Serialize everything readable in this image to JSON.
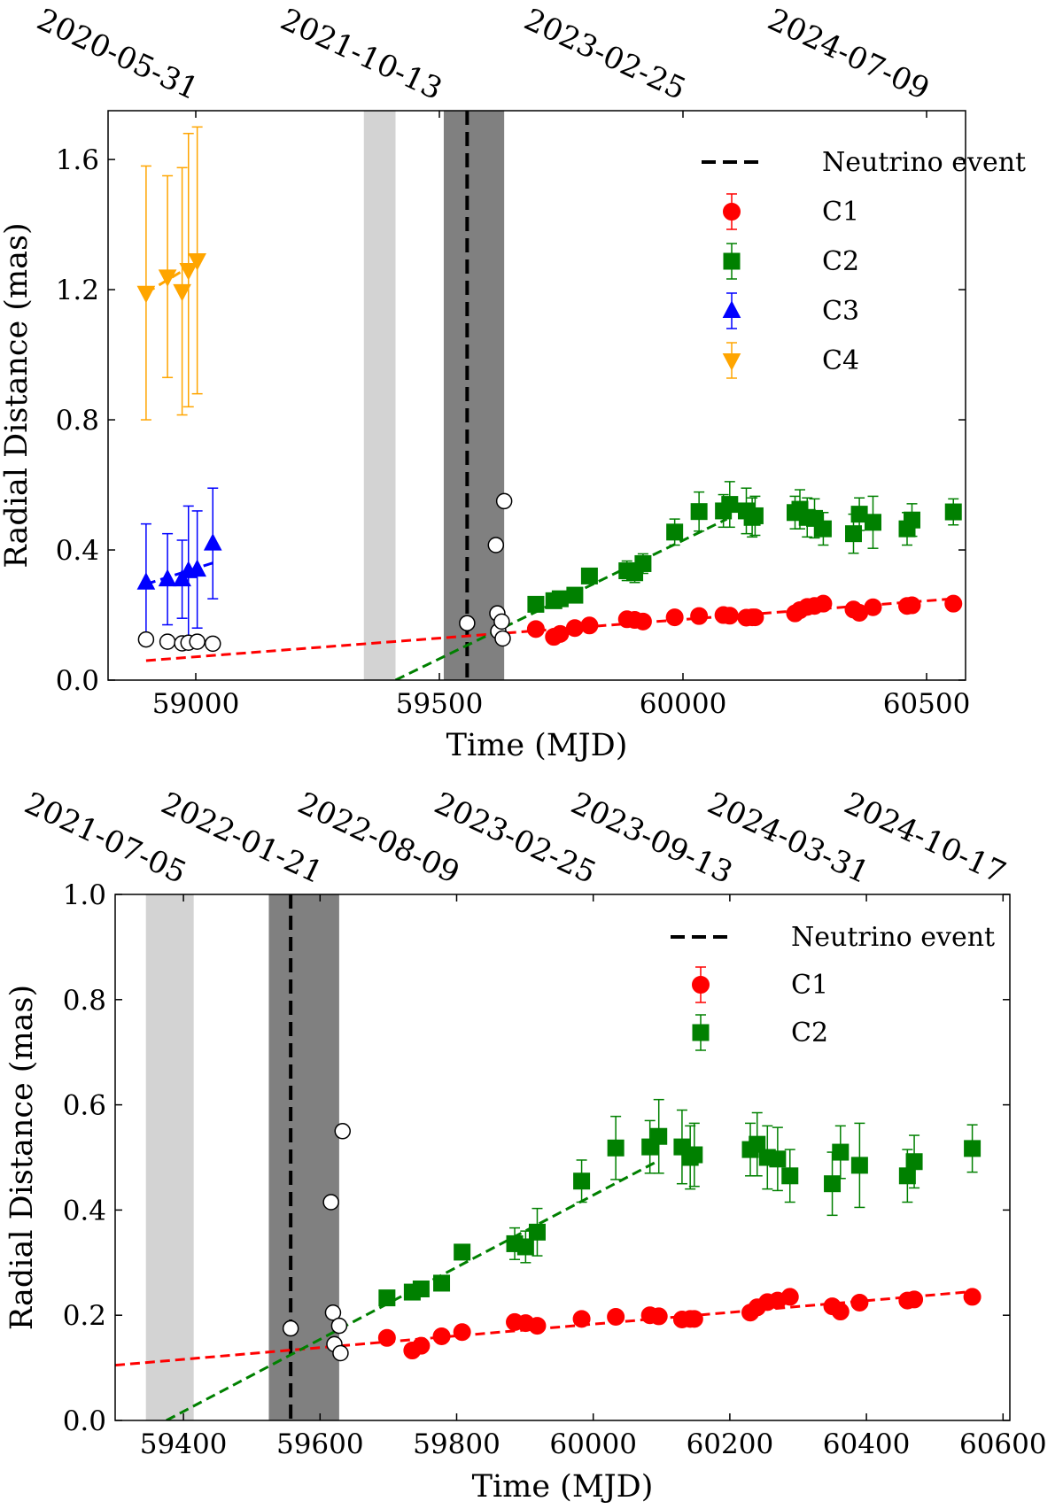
{
  "chart_data": [
    {
      "type": "scatter",
      "xlabel": "Time (MJD)",
      "ylabel": "Radial Distance (mas)",
      "xlim": [
        58820,
        60580
      ],
      "ylim": [
        0.0,
        1.75
      ],
      "xticks": [
        59000,
        59500,
        60000,
        60500
      ],
      "yticks": [
        0.0,
        0.4,
        0.8,
        1.2,
        1.6
      ],
      "xtick_labels": [
        "59000",
        "59500",
        "60000",
        "60500"
      ],
      "ytick_labels": [
        "0.0",
        "0.4",
        "0.8",
        "1.2",
        "1.6"
      ],
      "top_axis_dates": [
        {
          "mjd": 59000,
          "label": "2020-05-31"
        },
        {
          "mjd": 59500,
          "label": "2021-10-13"
        },
        {
          "mjd": 60000,
          "label": "2023-02-25"
        },
        {
          "mjd": 60500,
          "label": "2024-07-09"
        }
      ],
      "legend_position": "top-right",
      "shaded_regions": [
        {
          "x0": 59345,
          "x1": 59410,
          "color": "#d3d3d3"
        },
        {
          "x0": 59509,
          "x1": 59633,
          "color": "#808080"
        }
      ],
      "vlines": [
        {
          "x": 59557,
          "name": "Neutrino event",
          "color": "#000000",
          "style": "dashed"
        }
      ],
      "series": [
        {
          "name": "C1",
          "color": "#ff0000",
          "marker": "circle",
          "points": [
            [
              59698,
              0.157
            ],
            [
              59735,
              0.133
            ],
            [
              59748,
              0.142
            ],
            [
              59778,
              0.16
            ],
            [
              59808,
              0.168
            ],
            [
              59885,
              0.187
            ],
            [
              59901,
              0.185
            ],
            [
              59918,
              0.18
            ],
            [
              59983,
              0.193
            ],
            [
              60033,
              0.197
            ],
            [
              60083,
              0.2
            ],
            [
              60096,
              0.198
            ],
            [
              60130,
              0.192
            ],
            [
              60142,
              0.193
            ],
            [
              60148,
              0.193
            ],
            [
              60230,
              0.205
            ],
            [
              60240,
              0.215
            ],
            [
              60255,
              0.225
            ],
            [
              60270,
              0.228
            ],
            [
              60288,
              0.235
            ],
            [
              60350,
              0.217
            ],
            [
              60362,
              0.207
            ],
            [
              60390,
              0.224
            ],
            [
              60460,
              0.228
            ],
            [
              60470,
              0.23
            ],
            [
              60555,
              0.235
            ]
          ],
          "err": []
        },
        {
          "name": "C2",
          "color": "#008000",
          "marker": "square",
          "points": [
            [
              59698,
              0.233
            ],
            [
              59735,
              0.244
            ],
            [
              59748,
              0.25
            ],
            [
              59778,
              0.261
            ],
            [
              59808,
              0.32
            ],
            [
              59885,
              0.336
            ],
            [
              59901,
              0.33
            ],
            [
              59918,
              0.358
            ],
            [
              59983,
              0.455
            ],
            [
              60033,
              0.518
            ],
            [
              60083,
              0.52
            ],
            [
              60096,
              0.54
            ],
            [
              60130,
              0.52
            ],
            [
              60142,
              0.5
            ],
            [
              60148,
              0.505
            ],
            [
              60230,
              0.515
            ],
            [
              60240,
              0.525
            ],
            [
              60255,
              0.5
            ],
            [
              60270,
              0.497
            ],
            [
              60288,
              0.465
            ],
            [
              60350,
              0.45
            ],
            [
              60362,
              0.51
            ],
            [
              60390,
              0.485
            ],
            [
              60460,
              0.465
            ],
            [
              60470,
              0.492
            ],
            [
              60555,
              0.517
            ]
          ],
          "err": [
            0,
            0,
            0,
            0,
            0,
            0.03,
            0.03,
            0.03,
            0.04,
            0.06,
            0.05,
            0.07,
            0.07,
            0.06,
            0.06,
            0.05,
            0.06,
            0.06,
            0.06,
            0.05,
            0.06,
            0.05,
            0.08,
            0.05,
            0.05,
            0.04
          ]
        },
        {
          "name": "C3",
          "color": "#0000ff",
          "marker": "triangle-up",
          "points": [
            [
              58898,
              0.3
            ],
            [
              58942,
              0.31
            ],
            [
              58972,
              0.31
            ],
            [
              58985,
              0.335
            ],
            [
              59003,
              0.34
            ],
            [
              59035,
              0.42
            ]
          ],
          "err": [
            0.18,
            0.14,
            0.12,
            0.2,
            0.18,
            0.17
          ]
        },
        {
          "name": "C4",
          "color": "#ffa500",
          "marker": "triangle-down",
          "points": [
            [
              58898,
              1.19
            ],
            [
              58942,
              1.24
            ],
            [
              58972,
              1.195
            ],
            [
              58985,
              1.26
            ],
            [
              59003,
              1.29
            ]
          ],
          "err": [
            0.39,
            0.31,
            0.38,
            0.42,
            0.41
          ]
        }
      ],
      "unassociated_points": [
        [
          58898,
          0.125
        ],
        [
          58942,
          0.118
        ],
        [
          58972,
          0.113
        ],
        [
          58985,
          0.115
        ],
        [
          59003,
          0.118
        ],
        [
          59035,
          0.112
        ],
        [
          59557,
          0.175
        ],
        [
          59616,
          0.415
        ],
        [
          59619,
          0.205
        ],
        [
          59621,
          0.15
        ],
        [
          59628,
          0.18
        ],
        [
          59630,
          0.128
        ],
        [
          59633,
          0.55
        ]
      ],
      "fit_lines": [
        {
          "color": "#ff0000",
          "x0": 58898,
          "y0": 0.06,
          "x1": 60555,
          "y1": 0.25
        },
        {
          "color": "#008000",
          "x0": 59410,
          "y0": 0.0,
          "x1": 60090,
          "y1": 0.495
        },
        {
          "color": "#0000ff",
          "x0": 58898,
          "y0": 0.295,
          "x1": 59035,
          "y1": 0.36
        },
        {
          "color": "#ffa500",
          "x0": 58898,
          "y0": 1.19,
          "x1": 59003,
          "y1": 1.285
        }
      ],
      "legend": [
        "Neutrino event",
        "C1",
        "C2",
        "C3",
        "C4"
      ]
    },
    {
      "type": "scatter",
      "xlabel": "Time (MJD)",
      "ylabel": "Radial Distance (mas)",
      "xlim": [
        59300,
        60610
      ],
      "ylim": [
        0.0,
        1.0
      ],
      "xticks": [
        59400,
        59600,
        59800,
        60000,
        60200,
        60400,
        60600
      ],
      "yticks": [
        0.0,
        0.2,
        0.4,
        0.6,
        0.8,
        1.0
      ],
      "xtick_labels": [
        "59400",
        "59600",
        "59800",
        "60000",
        "60200",
        "60400",
        "60600"
      ],
      "ytick_labels": [
        "0.0",
        "0.2",
        "0.4",
        "0.6",
        "0.8",
        "1.0"
      ],
      "top_axis_dates": [
        {
          "mjd": 59400,
          "label": "2021-07-05"
        },
        {
          "mjd": 59600,
          "label": "2022-01-21"
        },
        {
          "mjd": 59800,
          "label": "2022-08-09"
        },
        {
          "mjd": 60000,
          "label": "2023-02-25"
        },
        {
          "mjd": 60200,
          "label": "2023-09-13"
        },
        {
          "mjd": 60400,
          "label": "2024-03-31"
        },
        {
          "mjd": 60600,
          "label": "2024-10-17"
        }
      ],
      "legend_position": "top-right",
      "shaded_regions": [
        {
          "x0": 59345,
          "x1": 59415,
          "color": "#d3d3d3"
        },
        {
          "x0": 59525,
          "x1": 59628,
          "color": "#808080"
        }
      ],
      "vlines": [
        {
          "x": 59557,
          "name": "Neutrino event",
          "color": "#000000",
          "style": "dashed"
        }
      ],
      "series": [
        {
          "name": "C1",
          "color": "#ff0000",
          "marker": "circle",
          "points": [
            [
              59698,
              0.157
            ],
            [
              59735,
              0.133
            ],
            [
              59748,
              0.142
            ],
            [
              59778,
              0.16
            ],
            [
              59808,
              0.168
            ],
            [
              59885,
              0.187
            ],
            [
              59901,
              0.185
            ],
            [
              59918,
              0.18
            ],
            [
              59983,
              0.193
            ],
            [
              60033,
              0.197
            ],
            [
              60083,
              0.2
            ],
            [
              60096,
              0.198
            ],
            [
              60130,
              0.192
            ],
            [
              60142,
              0.193
            ],
            [
              60148,
              0.193
            ],
            [
              60230,
              0.205
            ],
            [
              60240,
              0.215
            ],
            [
              60255,
              0.225
            ],
            [
              60270,
              0.228
            ],
            [
              60288,
              0.235
            ],
            [
              60350,
              0.217
            ],
            [
              60362,
              0.207
            ],
            [
              60390,
              0.224
            ],
            [
              60460,
              0.228
            ],
            [
              60470,
              0.23
            ],
            [
              60555,
              0.235
            ]
          ],
          "err": []
        },
        {
          "name": "C2",
          "color": "#008000",
          "marker": "square",
          "points": [
            [
              59698,
              0.233
            ],
            [
              59735,
              0.244
            ],
            [
              59748,
              0.25
            ],
            [
              59778,
              0.261
            ],
            [
              59808,
              0.32
            ],
            [
              59885,
              0.336
            ],
            [
              59901,
              0.33
            ],
            [
              59918,
              0.358
            ],
            [
              59983,
              0.455
            ],
            [
              60033,
              0.518
            ],
            [
              60083,
              0.52
            ],
            [
              60096,
              0.54
            ],
            [
              60130,
              0.52
            ],
            [
              60142,
              0.5
            ],
            [
              60148,
              0.505
            ],
            [
              60230,
              0.515
            ],
            [
              60240,
              0.525
            ],
            [
              60255,
              0.5
            ],
            [
              60270,
              0.497
            ],
            [
              60288,
              0.465
            ],
            [
              60350,
              0.45
            ],
            [
              60362,
              0.51
            ],
            [
              60390,
              0.485
            ],
            [
              60460,
              0.465
            ],
            [
              60470,
              0.492
            ],
            [
              60555,
              0.517
            ]
          ],
          "err": [
            0,
            0,
            0,
            0,
            0,
            0.03,
            0.03,
            0.045,
            0.04,
            0.06,
            0.05,
            0.07,
            0.07,
            0.06,
            0.06,
            0.05,
            0.06,
            0.06,
            0.06,
            0.05,
            0.06,
            0.05,
            0.08,
            0.05,
            0.05,
            0.045
          ]
        }
      ],
      "unassociated_points": [
        [
          59557,
          0.175
        ],
        [
          59616,
          0.415
        ],
        [
          59619,
          0.205
        ],
        [
          59621,
          0.145
        ],
        [
          59628,
          0.18
        ],
        [
          59630,
          0.128
        ],
        [
          59633,
          0.55
        ]
      ],
      "fit_lines": [
        {
          "color": "#ff0000",
          "x0": 59300,
          "y0": 0.105,
          "x1": 60555,
          "y1": 0.245
        },
        {
          "color": "#008000",
          "x0": 59375,
          "y0": 0.0,
          "x1": 60090,
          "y1": 0.49
        }
      ],
      "legend": [
        "Neutrino event",
        "C1",
        "C2"
      ]
    }
  ]
}
